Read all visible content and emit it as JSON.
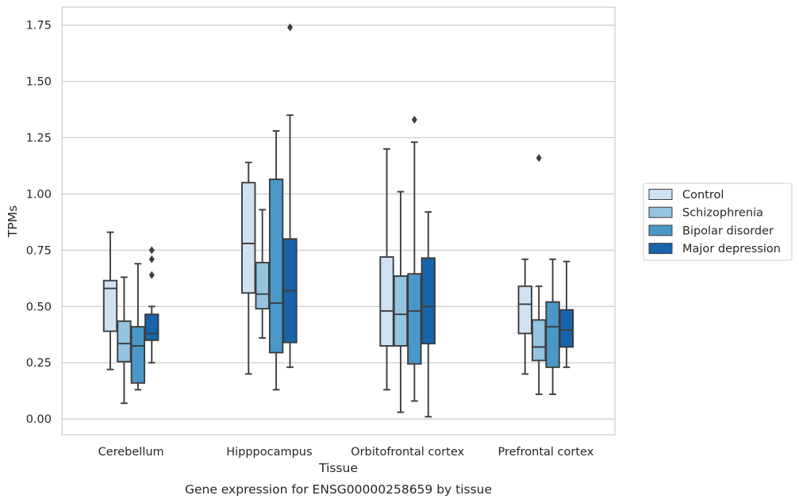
{
  "caption": "Gene expression for ENSG00000258659 by tissue",
  "chart_data": {
    "type": "boxplot",
    "xlabel": "Tissue",
    "ylabel": "TPMs",
    "ylim": [
      -0.07,
      1.83
    ],
    "yticks": [
      "0.00",
      "0.25",
      "0.50",
      "0.75",
      "1.00",
      "1.25",
      "1.50",
      "1.75"
    ],
    "grid": "horizontal",
    "legend_position": "right",
    "categories": [
      "Cerebellum",
      "Hipppocampus",
      "Orbitofrontal cortex",
      "Prefrontal cortex"
    ],
    "series": [
      {
        "name": "Control",
        "color": "#d0e1f2",
        "boxes": [
          {
            "whislo": 0.22,
            "q1": 0.39,
            "med": 0.58,
            "q3": 0.615,
            "whishi": 0.83,
            "fliers": []
          },
          {
            "whislo": 0.2,
            "q1": 0.56,
            "med": 0.78,
            "q3": 1.05,
            "whishi": 1.14,
            "fliers": []
          },
          {
            "whislo": 0.13,
            "q1": 0.325,
            "med": 0.48,
            "q3": 0.72,
            "whishi": 1.2,
            "fliers": []
          },
          {
            "whislo": 0.2,
            "q1": 0.38,
            "med": 0.51,
            "q3": 0.59,
            "whishi": 0.71,
            "fliers": []
          }
        ]
      },
      {
        "name": "Schizophrenia",
        "color": "#94c4df",
        "boxes": [
          {
            "whislo": 0.07,
            "q1": 0.255,
            "med": 0.335,
            "q3": 0.435,
            "whishi": 0.63,
            "fliers": []
          },
          {
            "whislo": 0.36,
            "q1": 0.49,
            "med": 0.555,
            "q3": 0.695,
            "whishi": 0.93,
            "fliers": []
          },
          {
            "whislo": 0.03,
            "q1": 0.325,
            "med": 0.465,
            "q3": 0.635,
            "whishi": 1.01,
            "fliers": []
          },
          {
            "whislo": 0.11,
            "q1": 0.26,
            "med": 0.32,
            "q3": 0.44,
            "whishi": 0.59,
            "fliers": [
              1.16
            ]
          }
        ]
      },
      {
        "name": "Bipolar disorder",
        "color": "#4a98c9",
        "boxes": [
          {
            "whislo": 0.13,
            "q1": 0.16,
            "med": 0.325,
            "q3": 0.41,
            "whishi": 0.69,
            "fliers": []
          },
          {
            "whislo": 0.13,
            "q1": 0.295,
            "med": 0.515,
            "q3": 1.065,
            "whishi": 1.28,
            "fliers": []
          },
          {
            "whislo": 0.08,
            "q1": 0.245,
            "med": 0.48,
            "q3": 0.645,
            "whishi": 1.23,
            "fliers": [
              1.33
            ]
          },
          {
            "whislo": 0.11,
            "q1": 0.23,
            "med": 0.41,
            "q3": 0.52,
            "whishi": 0.71,
            "fliers": []
          }
        ]
      },
      {
        "name": "Major depression",
        "color": "#1764ab",
        "boxes": [
          {
            "whislo": 0.25,
            "q1": 0.35,
            "med": 0.38,
            "q3": 0.465,
            "whishi": 0.5,
            "fliers": [
              0.64,
              0.71,
              0.75
            ]
          },
          {
            "whislo": 0.23,
            "q1": 0.34,
            "med": 0.57,
            "q3": 0.8,
            "whishi": 1.35,
            "fliers": [
              1.74
            ]
          },
          {
            "whislo": 0.01,
            "q1": 0.335,
            "med": 0.5,
            "q3": 0.715,
            "whishi": 0.92,
            "fliers": []
          },
          {
            "whislo": 0.23,
            "q1": 0.32,
            "med": 0.395,
            "q3": 0.485,
            "whishi": 0.7,
            "fliers": []
          }
        ]
      }
    ]
  }
}
